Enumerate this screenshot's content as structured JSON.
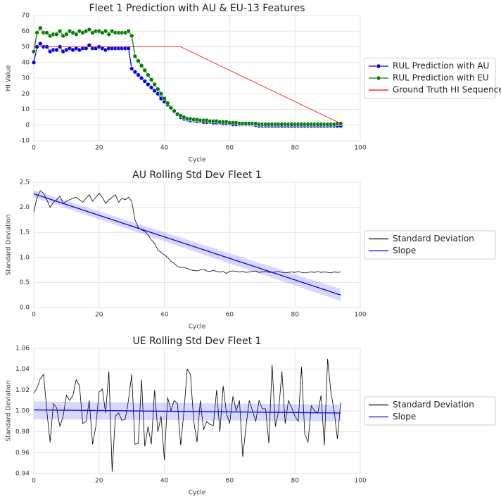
{
  "chart_data": [
    {
      "type": "line",
      "title": "Fleet 1 Prediction with AU & EU-13 Features",
      "xlabel": "Cycle",
      "ylabel": "HI Value",
      "x": [
        0,
        1,
        2,
        3,
        4,
        5,
        6,
        7,
        8,
        9,
        10,
        11,
        12,
        13,
        14,
        15,
        16,
        17,
        18,
        19,
        20,
        21,
        22,
        23,
        24,
        25,
        26,
        27,
        28,
        29,
        30,
        31,
        32,
        33,
        34,
        35,
        36,
        37,
        38,
        39,
        40,
        41,
        42,
        43,
        44,
        45,
        46,
        47,
        48,
        49,
        50,
        51,
        52,
        53,
        54,
        55,
        56,
        57,
        58,
        59,
        60,
        61,
        62,
        63,
        64,
        65,
        66,
        67,
        68,
        69,
        70,
        71,
        72,
        73,
        74,
        75,
        76,
        77,
        78,
        79,
        80,
        81,
        82,
        83,
        84,
        85,
        86,
        87,
        88,
        89,
        90,
        91,
        92,
        93,
        94
      ],
      "xlim": [
        0,
        100
      ],
      "xticks": [
        0,
        20,
        40,
        60,
        80,
        100
      ],
      "ylim": [
        -10,
        70
      ],
      "yticks": [
        -10,
        0,
        10,
        20,
        30,
        40,
        50,
        60,
        70
      ],
      "grid": true,
      "legend": "outside-right",
      "series": [
        {
          "name": "RUL Prediction with AU",
          "color": "#0000ff",
          "marker": true,
          "values": [
            40,
            50,
            52,
            50,
            50,
            47,
            48,
            48,
            50,
            47,
            48,
            49,
            48,
            49,
            48,
            49,
            49,
            51,
            49,
            49,
            50,
            49,
            48,
            49,
            49,
            49,
            49,
            49,
            49,
            49,
            36,
            34,
            32,
            30,
            28,
            26,
            24,
            22,
            20,
            17,
            15,
            13,
            11,
            9,
            7,
            5,
            4,
            3.5,
            3,
            3,
            2.5,
            2.5,
            2,
            2,
            2,
            1.5,
            1.5,
            1.5,
            1,
            1,
            1,
            0.5,
            0.5,
            0.5,
            0.5,
            0.5,
            0.5,
            0.5,
            0,
            -0.5,
            -0.5,
            -0.5,
            -0.5,
            -0.5,
            -0.5,
            -0.5,
            -0.5,
            -0.5,
            -0.5,
            -0.5,
            -0.5,
            -0.5,
            -0.5,
            -0.5,
            -0.5,
            -0.5,
            -0.5,
            -0.5,
            -0.5,
            -0.5,
            -0.5,
            -0.5,
            -0.5,
            -0.5,
            -0.5
          ]
        },
        {
          "name": "RUL Prediction with EU",
          "color": "#008000",
          "marker": true,
          "values": [
            47,
            59,
            62,
            59,
            59,
            57,
            58,
            58,
            60,
            57,
            58,
            60,
            59,
            58,
            60,
            59,
            60,
            61,
            59,
            60,
            60,
            59,
            60,
            58,
            60,
            59,
            59,
            59,
            59,
            60,
            57,
            44,
            41,
            38,
            35,
            32,
            29,
            26,
            23,
            20,
            17,
            14,
            11,
            9,
            7,
            6,
            5,
            4,
            4,
            3.5,
            3.5,
            3,
            3,
            3,
            2.5,
            2.5,
            2.5,
            2,
            2,
            2,
            1.5,
            1.5,
            1.5,
            1,
            1,
            1,
            1,
            1,
            1,
            0.5,
            0.5,
            0.5,
            0.5,
            0.5,
            0.5,
            0.5,
            0.5,
            0.5,
            0.5,
            0.5,
            0.5,
            0.5,
            0.5,
            0.5,
            0.5,
            0.5,
            0.5,
            0.5,
            0.5,
            0.5,
            0.5,
            0.5,
            0.5,
            1,
            1
          ]
        },
        {
          "name": "Ground Truth HI Sequence",
          "color": "#ff0000",
          "marker": false,
          "x": [
            0,
            45,
            94
          ],
          "values": [
            50,
            50,
            1
          ]
        }
      ]
    },
    {
      "type": "line",
      "title": "AU Rolling Std Dev Fleet 1",
      "xlabel": "Cycle",
      "ylabel": "Standard Deviation",
      "x": [
        0,
        1,
        2,
        3,
        4,
        5,
        6,
        7,
        8,
        9,
        10,
        11,
        12,
        13,
        14,
        15,
        16,
        17,
        18,
        19,
        20,
        21,
        22,
        23,
        24,
        25,
        26,
        27,
        28,
        29,
        30,
        31,
        32,
        33,
        34,
        35,
        36,
        37,
        38,
        39,
        40,
        41,
        42,
        43,
        44,
        45,
        46,
        47,
        48,
        49,
        50,
        51,
        52,
        53,
        54,
        55,
        56,
        57,
        58,
        59,
        60,
        61,
        62,
        63,
        64,
        65,
        66,
        67,
        68,
        69,
        70,
        71,
        72,
        73,
        74,
        75,
        76,
        77,
        78,
        79,
        80,
        81,
        82,
        83,
        84,
        85,
        86,
        87,
        88,
        89,
        90,
        91,
        92,
        93,
        94
      ],
      "xlim": [
        0,
        100
      ],
      "xticks": [
        0,
        20,
        40,
        60,
        80,
        100
      ],
      "ylim": [
        0,
        2.5
      ],
      "yticks": [
        {
          "value": 0,
          "label": "0.0"
        },
        0.5,
        {
          "value": 1,
          "label": "1.0"
        },
        1.5,
        {
          "value": 2,
          "label": "2.0"
        },
        2.5
      ],
      "grid": true,
      "legend": "outside-right",
      "series": [
        {
          "name": "Standard Deviation",
          "color": "#000000",
          "marker": false,
          "values": [
            1.9,
            2.2,
            2.33,
            2.28,
            2.15,
            2.0,
            2.1,
            2.15,
            2.22,
            2.08,
            2.12,
            2.15,
            2.18,
            2.2,
            2.15,
            2.1,
            2.18,
            2.25,
            2.12,
            2.2,
            2.28,
            2.2,
            2.08,
            2.15,
            2.2,
            2.25,
            2.1,
            2.18,
            2.15,
            2.2,
            2.12,
            1.75,
            1.6,
            1.55,
            1.52,
            1.45,
            1.35,
            1.28,
            1.15,
            1.1,
            1.05,
            1.0,
            0.92,
            0.88,
            0.82,
            0.8,
            0.8,
            0.78,
            0.75,
            0.74,
            0.73,
            0.75,
            0.76,
            0.73,
            0.72,
            0.74,
            0.72,
            0.71,
            0.72,
            0.68,
            0.72,
            0.73,
            0.72,
            0.71,
            0.72,
            0.7,
            0.71,
            0.72,
            0.73,
            0.7,
            0.71,
            0.72,
            0.7,
            0.7,
            0.71,
            0.72,
            0.7,
            0.69,
            0.7,
            0.71,
            0.7,
            0.72,
            0.7,
            0.69,
            0.7,
            0.71,
            0.7,
            0.72,
            0.7,
            0.71,
            0.7,
            0.69,
            0.71,
            0.7,
            0.71
          ]
        },
        {
          "name": "Slope",
          "color": "#0000ff",
          "marker": false,
          "x": [
            0,
            94
          ],
          "values": [
            2.27,
            0.25
          ],
          "band_lower": [
            2.2,
            0.13
          ],
          "band_upper": [
            2.34,
            0.37
          ]
        }
      ]
    },
    {
      "type": "line",
      "title": "UE Rolling Std Dev Fleet 1",
      "xlabel": "Cycle",
      "ylabel": "Standard Deviation",
      "x": [
        0,
        1,
        2,
        3,
        4,
        5,
        6,
        7,
        8,
        9,
        10,
        11,
        12,
        13,
        14,
        15,
        16,
        17,
        18,
        19,
        20,
        21,
        22,
        23,
        24,
        25,
        26,
        27,
        28,
        29,
        30,
        31,
        32,
        33,
        34,
        35,
        36,
        37,
        38,
        39,
        40,
        41,
        42,
        43,
        44,
        45,
        46,
        47,
        48,
        49,
        50,
        51,
        52,
        53,
        54,
        55,
        56,
        57,
        58,
        59,
        60,
        61,
        62,
        63,
        64,
        65,
        66,
        67,
        68,
        69,
        70,
        71,
        72,
        73,
        74,
        75,
        76,
        77,
        78,
        79,
        80,
        81,
        82,
        83,
        84,
        85,
        86,
        87,
        88,
        89,
        90,
        91,
        92,
        93,
        94
      ],
      "xlim": [
        0,
        100
      ],
      "xticks": [
        0,
        20,
        40,
        60,
        80,
        100
      ],
      "ylim": [
        0.94,
        1.06
      ],
      "yticks": [
        0.94,
        0.96,
        0.98,
        {
          "value": 1,
          "label": "1.00"
        },
        1.02,
        1.04,
        1.06
      ],
      "grid": true,
      "legend": "outside-right",
      "series": [
        {
          "name": "Standard Deviation",
          "color": "#000000",
          "marker": false,
          "values": [
            1.017,
            1.022,
            1.031,
            1.035,
            1.0,
            0.97,
            1.007,
            1.003,
            0.985,
            0.995,
            1.015,
            1.01,
            1.015,
            1.03,
            1.024,
            0.988,
            0.99,
            1.01,
            0.968,
            0.985,
            1.018,
            1.021,
            0.998,
            1.038,
            0.942,
            0.995,
            0.998,
            0.991,
            0.992,
            1.01,
            1.035,
            0.968,
            0.969,
            1.03,
            0.966,
            0.985,
            0.968,
            1.02,
            0.98,
            0.995,
            0.953,
            1.013,
            1.0,
            1.01,
            1.007,
            0.967,
            1.0,
            1.04,
            1.035,
            0.99,
            0.97,
            1.01,
            0.982,
            0.99,
            0.987,
            0.986,
            1.02,
            0.98,
            1.024,
            0.998,
            0.988,
            1.014,
            1.0,
            1.01,
            0.956,
            0.985,
            1.01,
            1.0,
            0.99,
            1.01,
            1.002,
            1.002,
            0.969,
            1.044,
            0.985,
            1.0,
            1.038,
            0.988,
            1.01,
            1.003,
            0.995,
            0.99,
            1.042,
            0.978,
            0.97,
            1.005,
            1.0,
            0.998,
            1.015,
            0.967,
            1.05,
            1.018,
            1.0,
            0.973,
            1.008
          ]
        },
        {
          "name": "Slope",
          "color": "#0000ff",
          "marker": false,
          "x": [
            0,
            94
          ],
          "values": [
            1.001,
            0.998
          ],
          "band_lower": [
            0.992,
            0.99
          ],
          "band_upper": [
            1.009,
            1.006
          ]
        }
      ]
    }
  ]
}
